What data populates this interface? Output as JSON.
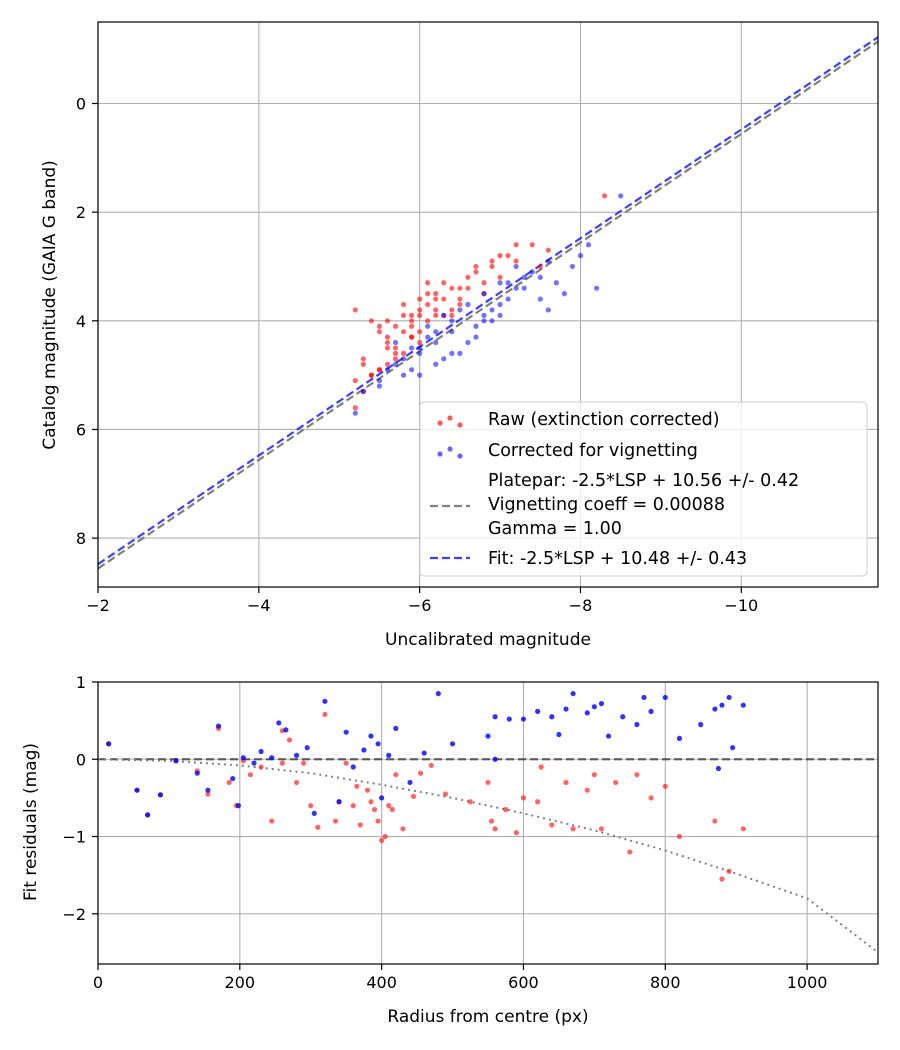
{
  "chart_data": [
    {
      "type": "scatter",
      "xlabel": "Uncalibrated magnitude",
      "ylabel": "Catalog magnitude (GAIA G band)",
      "xlim": [
        -2,
        -11.7
      ],
      "ylim": [
        8.9,
        -1.5
      ],
      "grid": true,
      "xticks": [
        -2,
        -4,
        -6,
        -8,
        -10
      ],
      "xtick_labels": [
        "−2",
        "−4",
        "−6",
        "−8",
        "−10"
      ],
      "yticks": [
        0,
        2,
        4,
        6,
        8
      ],
      "ytick_labels": [
        "0",
        "2",
        "4",
        "6",
        "8"
      ],
      "legend_position": "lower-right",
      "colors": {
        "raw": "#ff0000",
        "corrected": "#0000ff",
        "platepar": "#808080",
        "fit": "#0000ff"
      },
      "series": [
        {
          "name": "Raw (extinction corrected)",
          "kind": "points",
          "x": [
            -5.2,
            -5.4,
            -5.5,
            -5.6,
            -5.7,
            -5.8,
            -5.9,
            -6.0,
            -6.1,
            -6.2,
            -5.3,
            -5.5,
            -5.6,
            -5.8,
            -5.9,
            -6.0,
            -6.2,
            -6.3,
            -6.4,
            -6.5,
            -5.4,
            -5.6,
            -5.7,
            -5.9,
            -6.1,
            -6.3,
            -6.5,
            -6.6,
            -6.8,
            -6.9,
            -5.2,
            -5.5,
            -5.7,
            -6.0,
            -6.2,
            -6.4,
            -6.6,
            -6.7,
            -6.9,
            -7.0,
            -5.3,
            -5.6,
            -5.8,
            -6.0,
            -6.1,
            -6.4,
            -6.7,
            -7.0,
            -7.2,
            -7.4,
            -5.2,
            -5.4,
            -5.7,
            -5.9,
            -6.2,
            -6.5,
            -6.8,
            -7.1,
            -7.5,
            -7.6,
            -7.2,
            -8.3,
            -5.6,
            -5.8,
            -6.0,
            -6.3,
            -5.5,
            -5.9,
            -6.1,
            -5.3
          ],
          "y": [
            3.8,
            4.0,
            4.2,
            4.3,
            4.5,
            4.6,
            4.1,
            3.9,
            4.0,
            3.8,
            4.7,
            4.9,
            4.4,
            4.2,
            4.0,
            3.6,
            3.5,
            3.9,
            3.4,
            3.7,
            5.0,
            4.8,
            4.6,
            4.3,
            3.7,
            3.3,
            3.6,
            3.2,
            3.5,
            3.0,
            5.1,
            4.9,
            4.1,
            3.8,
            3.6,
            3.9,
            3.4,
            3.1,
            2.9,
            3.2,
            5.3,
            4.5,
            3.9,
            4.4,
            3.5,
            3.8,
            3.0,
            2.8,
            2.9,
            2.6,
            5.6,
            5.0,
            4.7,
            4.3,
            3.9,
            3.4,
            3.3,
            2.8,
            3.0,
            2.7,
            2.6,
            1.7,
            4.0,
            3.7,
            4.2,
            3.6,
            4.1,
            3.9,
            3.3,
            4.8
          ]
        },
        {
          "name": "Corrected for vignetting",
          "kind": "points",
          "x": [
            -5.3,
            -5.6,
            -5.8,
            -6.0,
            -6.2,
            -6.4,
            -6.5,
            -6.7,
            -6.8,
            -7.0,
            -5.5,
            -5.7,
            -5.9,
            -6.1,
            -6.3,
            -6.6,
            -6.9,
            -7.1,
            -7.3,
            -7.5,
            -5.8,
            -6.0,
            -6.2,
            -6.4,
            -6.6,
            -6.8,
            -7.0,
            -7.2,
            -7.4,
            -7.6,
            -5.9,
            -6.1,
            -6.3,
            -6.5,
            -6.7,
            -7.0,
            -7.2,
            -7.5,
            -7.7,
            -7.9,
            -8.0,
            -8.1,
            -8.5,
            -5.5,
            -5.7,
            -6.2,
            -6.9,
            -7.3,
            -7.8,
            -5.2,
            -6.0,
            -6.4,
            -6.8,
            -7.1,
            -7.6,
            -8.2
          ],
          "y": [
            5.3,
            4.9,
            4.7,
            4.5,
            4.4,
            4.2,
            4.6,
            4.3,
            4.0,
            3.9,
            5.1,
            4.8,
            4.5,
            4.1,
            3.9,
            4.4,
            3.8,
            3.6,
            3.4,
            3.2,
            5.0,
            4.6,
            4.2,
            4.0,
            3.7,
            3.5,
            3.3,
            3.0,
            3.1,
            2.9,
            4.9,
            4.3,
            4.7,
            3.8,
            4.1,
            3.7,
            3.4,
            3.6,
            3.3,
            3.0,
            2.8,
            2.6,
            1.7,
            5.2,
            4.4,
            4.8,
            4.0,
            3.2,
            3.5,
            5.7,
            5.0,
            4.6,
            3.9,
            3.3,
            3.8,
            3.4
          ]
        },
        {
          "name": "Platepar: -2.5*LSP + 10.56 +/- 0.42\nVignetting coeff = 0.00088\nGamma = 1.00",
          "kind": "dashed-line",
          "x": [
            -2,
            -11.7
          ],
          "y": [
            8.56,
            -1.14
          ]
        },
        {
          "name": "Fit: -2.5*LSP + 10.48 +/- 0.43",
          "kind": "dashed-line",
          "x": [
            -2,
            -11.7
          ],
          "y": [
            8.48,
            -1.22
          ]
        }
      ],
      "legend": [
        "Raw (extinction corrected)",
        "Corrected for vignetting",
        "Platepar: -2.5*LSP + 10.56 +/- 0.42",
        "Vignetting coeff = 0.00088",
        "Gamma = 1.00",
        "Fit: -2.5*LSP + 10.48 +/- 0.43"
      ]
    },
    {
      "type": "scatter",
      "xlabel": "Radius from centre (px)",
      "ylabel": "Fit residuals (mag)",
      "xlim": [
        0,
        1100
      ],
      "ylim": [
        -2.65,
        1.0
      ],
      "grid": true,
      "xticks": [
        0,
        200,
        400,
        600,
        800,
        1000
      ],
      "xtick_labels": [
        "0",
        "200",
        "400",
        "600",
        "800",
        "1000"
      ],
      "yticks": [
        1,
        0,
        -1,
        -2
      ],
      "ytick_labels": [
        "1",
        "0",
        "−1",
        "−2"
      ],
      "series": [
        {
          "name": "Raw residuals",
          "kind": "points",
          "x": [
            15,
            55,
            70,
            88,
            110,
            140,
            155,
            170,
            185,
            195,
            205,
            215,
            230,
            245,
            260,
            270,
            280,
            290,
            310,
            320,
            335,
            350,
            360,
            370,
            380,
            385,
            390,
            395,
            400,
            405,
            410,
            420,
            430,
            445,
            455,
            470,
            490,
            550,
            555,
            560,
            575,
            590,
            600,
            620,
            640,
            660,
            670,
            690,
            710,
            730,
            750,
            760,
            780,
            800,
            820,
            870,
            880,
            890,
            910,
            260,
            300,
            340,
            365,
            415,
            525,
            625,
            700
          ],
          "y": [
            0.2,
            -0.4,
            -0.72,
            -0.46,
            -0.02,
            -0.15,
            -0.45,
            0.4,
            -0.3,
            -0.6,
            -0.02,
            -0.2,
            -0.1,
            -0.8,
            0.37,
            0.25,
            -0.3,
            -0.05,
            -0.88,
            0.58,
            -0.8,
            -0.05,
            -0.6,
            -0.85,
            -0.4,
            -0.55,
            -0.65,
            -0.8,
            -1.05,
            -1.0,
            -0.6,
            -0.2,
            -0.9,
            -0.48,
            -0.18,
            -0.08,
            -0.45,
            -0.3,
            -0.8,
            -0.9,
            -0.65,
            -0.95,
            -0.5,
            -0.55,
            -0.85,
            -0.3,
            -0.9,
            -0.4,
            -0.9,
            -0.3,
            -1.2,
            -0.2,
            -0.5,
            -0.35,
            -1.0,
            -0.8,
            -1.55,
            -1.45,
            -0.9,
            -0.05,
            -0.6,
            -0.55,
            -0.35,
            -0.65,
            -0.55,
            -0.1,
            -0.2
          ]
        },
        {
          "name": "Corrected residuals",
          "kind": "points",
          "x": [
            15,
            55,
            70,
            88,
            110,
            140,
            155,
            170,
            190,
            198,
            205,
            220,
            230,
            245,
            255,
            265,
            280,
            295,
            305,
            320,
            340,
            350,
            360,
            375,
            385,
            395,
            400,
            410,
            420,
            440,
            460,
            480,
            500,
            550,
            560,
            580,
            600,
            620,
            640,
            650,
            660,
            670,
            690,
            700,
            710,
            740,
            760,
            770,
            780,
            800,
            820,
            870,
            875,
            880,
            890,
            895,
            910,
            560,
            720,
            850
          ],
          "y": [
            0.2,
            -0.4,
            -0.72,
            -0.46,
            -0.02,
            -0.18,
            -0.4,
            0.43,
            -0.25,
            -0.6,
            0.02,
            -0.05,
            0.1,
            0.02,
            0.47,
            0.38,
            0.05,
            0.15,
            -0.7,
            0.75,
            -0.55,
            0.35,
            -0.1,
            0.12,
            0.3,
            0.2,
            -0.5,
            0.05,
            0.4,
            -0.3,
            0.08,
            0.85,
            0.2,
            0.3,
            0.55,
            0.52,
            0.52,
            0.62,
            0.55,
            0.32,
            0.65,
            0.85,
            0.6,
            0.68,
            0.72,
            0.55,
            0.45,
            0.8,
            0.62,
            0.8,
            0.27,
            0.65,
            -0.12,
            0.7,
            0.8,
            0.15,
            0.7,
            0.0,
            0.3,
            0.45
          ]
        },
        {
          "name": "Zero line",
          "kind": "dashed-line",
          "x": [
            0,
            1100
          ],
          "y": [
            0,
            0
          ]
        },
        {
          "name": "Vignetting model",
          "kind": "dotted-curve",
          "x": [
            0,
            100,
            200,
            300,
            400,
            500,
            600,
            700,
            800,
            900,
            1000,
            1100
          ],
          "y": [
            0.0,
            -0.02,
            -0.08,
            -0.18,
            -0.33,
            -0.5,
            -0.7,
            -0.92,
            -1.18,
            -1.48,
            -1.8,
            -2.5
          ]
        }
      ]
    }
  ]
}
